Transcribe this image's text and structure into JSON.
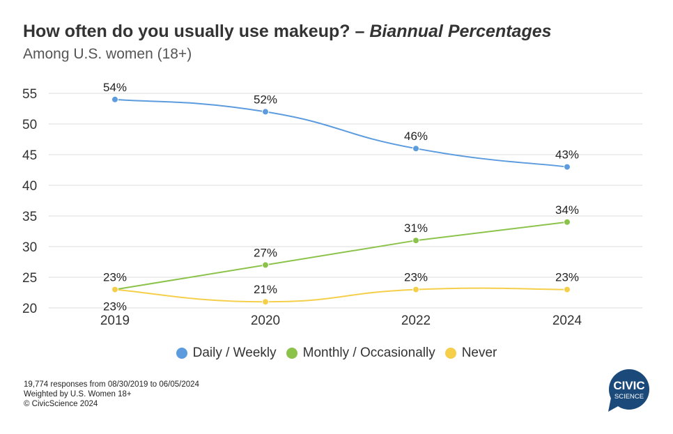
{
  "title": {
    "main": "How often do you usually use makeup? –",
    "emphasis": "Biannual Percentages",
    "subtitle": "Among U.S. women (18+)"
  },
  "chart_data": {
    "type": "line",
    "x": [
      "2019",
      "2020",
      "2022",
      "2024"
    ],
    "ylim": [
      20,
      55
    ],
    "yticks": [
      20,
      25,
      30,
      35,
      40,
      45,
      50,
      55
    ],
    "grid": true,
    "legend_position": "bottom",
    "series": [
      {
        "name": "Daily / Weekly",
        "color": "#5b9bde",
        "values": [
          54,
          52,
          46,
          43
        ],
        "labels": [
          "54%",
          "52%",
          "46%",
          "43%"
        ]
      },
      {
        "name": "Monthly / Occasionally",
        "color": "#8bc34a",
        "values": [
          23,
          27,
          31,
          34
        ],
        "labels": [
          "23%",
          "27%",
          "31%",
          "34%"
        ]
      },
      {
        "name": "Never",
        "color": "#f5cf4a",
        "values": [
          23,
          21,
          23,
          23
        ],
        "labels": [
          "23%",
          "21%",
          "23%",
          "23%"
        ]
      }
    ]
  },
  "footer": {
    "line1": "19,774 responses from 08/30/2019 to 06/05/2024",
    "line2": "Weighted by U.S. Women 18+",
    "line3": "© CivicScience 2024"
  },
  "logo": {
    "line1": "CIVIC",
    "line2": "SCIENCE",
    "color": "#1b4a7a"
  }
}
